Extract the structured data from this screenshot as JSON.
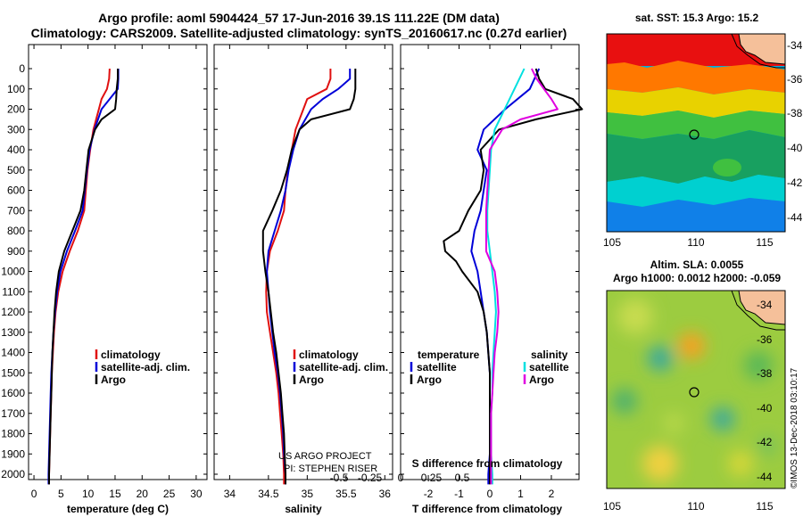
{
  "header": {
    "title_line1": "Argo profile: aoml 5904424_57 17-Jun-2016 39.1S 111.22E (DM data)",
    "title_line2": "Climatology: CARS2009. Satellite-adjusted climatology: synTS_20160617.nc (0.27d earlier)"
  },
  "colors": {
    "climatology": "#e01010",
    "satellite": "#0000d8",
    "argo": "#000000",
    "sal_satellite": "#00e0e0",
    "sal_argo": "#e000e0"
  },
  "chart_data": [
    {
      "type": "line",
      "panel": "temperature",
      "xlabel": "temperature (deg C)",
      "xlim": [
        -1,
        32
      ],
      "xticks": [
        0,
        5,
        10,
        15,
        20,
        25,
        30
      ],
      "ylim": [
        2060,
        0
      ],
      "yticks": [
        0,
        100,
        200,
        300,
        400,
        500,
        600,
        700,
        800,
        900,
        1000,
        1100,
        1200,
        1300,
        1400,
        1500,
        1600,
        1700,
        1800,
        1900,
        2000
      ],
      "legend": [
        "climatology",
        "satellite-adj. clim.",
        "Argo"
      ],
      "series": [
        {
          "name": "climatology",
          "color": "#e01010",
          "depth": [
            0,
            50,
            100,
            150,
            200,
            300,
            400,
            500,
            600,
            700,
            800,
            900,
            1000,
            1100,
            1200,
            1300,
            1400,
            1500,
            1600,
            1700,
            1800,
            1900,
            2000,
            2050
          ],
          "values": [
            14.0,
            13.9,
            13.5,
            12.5,
            12.0,
            11.0,
            10.4,
            9.9,
            9.6,
            9.3,
            8.1,
            6.6,
            5.3,
            4.5,
            4.0,
            3.7,
            3.5,
            3.3,
            3.2,
            3.1,
            3.0,
            2.9,
            2.8,
            2.8
          ]
        },
        {
          "name": "satellite-adj. clim.",
          "color": "#0000d8",
          "depth": [
            0,
            50,
            100,
            150,
            200,
            300,
            400,
            500,
            600,
            700,
            800,
            900,
            1000,
            1100,
            1200,
            1300,
            1400,
            1500,
            1600,
            1700,
            1800,
            1900,
            2000,
            2050
          ],
          "values": [
            15.6,
            15.6,
            15.5,
            14.0,
            12.5,
            11.2,
            10.3,
            9.8,
            9.4,
            9.0,
            7.6,
            6.1,
            4.9,
            4.3,
            3.9,
            3.6,
            3.4,
            3.2,
            3.1,
            3.0,
            2.9,
            2.8,
            2.7,
            2.7
          ]
        },
        {
          "name": "Argo",
          "color": "#000000",
          "depth": [
            0,
            50,
            100,
            150,
            200,
            250,
            300,
            400,
            500,
            600,
            700,
            800,
            900,
            1000,
            1100,
            1200,
            1300,
            1400,
            1500,
            1600,
            1700,
            1800,
            1900,
            2000,
            2050
          ],
          "values": [
            15.5,
            15.5,
            15.3,
            15.2,
            15.0,
            12.5,
            11.3,
            10.1,
            9.7,
            9.3,
            8.6,
            7.1,
            5.6,
            4.6,
            4.1,
            3.8,
            3.6,
            3.4,
            3.3,
            3.2,
            3.1,
            3.0,
            2.9,
            2.8,
            2.8
          ]
        }
      ]
    },
    {
      "type": "line",
      "panel": "salinity",
      "xlabel": "salinity",
      "xlim": [
        33.8,
        36.1
      ],
      "xticks": [
        34,
        34.5,
        35,
        35.5,
        36
      ],
      "ylim": [
        2060,
        0
      ],
      "legend": [
        "climatology",
        "satellite-adj. clim.",
        "Argo"
      ],
      "annotation": [
        "US ARGO PROJECT",
        "PI: STEPHEN RISER"
      ],
      "series": [
        {
          "name": "climatology",
          "color": "#e01010",
          "depth": [
            0,
            50,
            100,
            150,
            200,
            300,
            400,
            500,
            600,
            700,
            800,
            900,
            1000,
            1100,
            1200,
            1300,
            1400,
            1500,
            1600,
            1700,
            1800,
            1900,
            2000,
            2050
          ],
          "values": [
            35.3,
            35.3,
            35.25,
            35.0,
            34.95,
            34.85,
            34.8,
            34.75,
            34.72,
            34.7,
            34.62,
            34.52,
            34.48,
            34.47,
            34.48,
            34.52,
            34.56,
            34.6,
            34.63,
            34.65,
            34.67,
            34.69,
            34.7,
            34.7
          ]
        },
        {
          "name": "satellite-adj. clim.",
          "color": "#0000d8",
          "depth": [
            0,
            50,
            100,
            150,
            200,
            300,
            400,
            500,
            600,
            700,
            800,
            900,
            1000,
            1100,
            1200,
            1300,
            1400,
            1500,
            1600,
            1700,
            1800,
            1900,
            2000,
            2050
          ],
          "values": [
            35.55,
            35.55,
            35.4,
            35.2,
            35.05,
            34.9,
            34.82,
            34.76,
            34.72,
            34.66,
            34.58,
            34.5,
            34.48,
            34.5,
            34.52,
            34.55,
            34.58,
            34.62,
            34.65,
            34.67,
            34.69,
            34.7,
            34.72,
            34.72
          ]
        },
        {
          "name": "Argo",
          "color": "#000000",
          "depth": [
            0,
            50,
            100,
            150,
            200,
            250,
            300,
            400,
            500,
            600,
            700,
            800,
            900,
            1000,
            1100,
            1200,
            1300,
            1400,
            1500,
            1600,
            1700,
            1800,
            1900,
            2000,
            2050
          ],
          "values": [
            35.62,
            35.62,
            35.62,
            35.6,
            35.55,
            35.05,
            34.9,
            34.8,
            34.74,
            34.66,
            34.55,
            34.43,
            34.43,
            34.46,
            34.5,
            34.53,
            34.56,
            34.6,
            34.63,
            34.66,
            34.68,
            34.7,
            34.71,
            34.72,
            34.72
          ]
        }
      ]
    },
    {
      "type": "line",
      "panel": "difference",
      "xlabel": "T difference from climatology",
      "xlabel_secondary": "S difference from climatology",
      "xlim": [
        -2.9,
        2.9
      ],
      "xticks": [
        -2,
        -1,
        0,
        1,
        2
      ],
      "xticks_secondary": [
        "-0.5",
        "-0.25",
        "0",
        "0.25",
        "0.5"
      ],
      "ylim": [
        2060,
        0
      ],
      "legend": {
        "temperature_heading": "temperature",
        "salinity_heading": "salinity",
        "entries": [
          "satellite",
          "Argo"
        ]
      },
      "series": [
        {
          "name": "temperature satellite",
          "color": "#0000d8",
          "depth": [
            0,
            100,
            200,
            300,
            400,
            500,
            600,
            700,
            800,
            900,
            1000,
            1100,
            1200,
            1300,
            1400,
            1500,
            1600,
            1700,
            1800,
            1900,
            2000,
            2050
          ],
          "values": [
            1.6,
            1.3,
            0.5,
            -0.2,
            -0.4,
            -0.1,
            -0.2,
            -0.3,
            -0.5,
            -0.6,
            -0.4,
            -0.3,
            -0.2,
            -0.1,
            -0.05,
            0.0,
            0.0,
            0.0,
            0.0,
            0.0,
            -0.05,
            -0.05
          ]
        },
        {
          "name": "temperature Argo",
          "color": "#000000",
          "depth": [
            0,
            50,
            100,
            150,
            200,
            250,
            300,
            400,
            500,
            600,
            700,
            800,
            850,
            900,
            950,
            1000,
            1100,
            1200,
            1300,
            1400,
            1500,
            1600,
            1700,
            1800,
            1900,
            2000,
            2050
          ],
          "values": [
            1.5,
            1.6,
            1.8,
            2.7,
            3.0,
            1.5,
            0.3,
            -0.3,
            -0.2,
            -0.3,
            -0.7,
            -1.0,
            -1.5,
            -1.45,
            -1.1,
            -0.9,
            -0.4,
            -0.2,
            -0.1,
            -0.05,
            0.0,
            0.0,
            0.0,
            0.0,
            0.0,
            0.0,
            0.0
          ]
        },
        {
          "name": "salinity satellite",
          "color": "#00e0e0",
          "depth": [
            0,
            100,
            200,
            300,
            400,
            500,
            600,
            700,
            800,
            900,
            1000,
            1100,
            1200,
            1300,
            1400,
            1500,
            1600,
            1700,
            1800,
            1900,
            2000,
            2050
          ],
          "values": [
            0.28,
            0.2,
            0.12,
            0.04,
            0.01,
            0.0,
            -0.01,
            -0.02,
            -0.02,
            0.0,
            0.02,
            0.04,
            0.05,
            0.04,
            0.03,
            0.02,
            0.02,
            0.01,
            0.01,
            0.01,
            0.02,
            0.02
          ]
        },
        {
          "name": "salinity Argo",
          "color": "#e000e0",
          "depth": [
            0,
            50,
            100,
            150,
            200,
            250,
            300,
            400,
            500,
            600,
            700,
            800,
            900,
            1000,
            1100,
            1200,
            1300,
            1400,
            1500,
            1600,
            1700,
            1800,
            1900,
            2000,
            2050
          ],
          "values": [
            0.34,
            0.38,
            0.44,
            0.5,
            0.55,
            0.25,
            0.1,
            0.0,
            -0.01,
            -0.02,
            -0.03,
            -0.03,
            -0.03,
            0.04,
            0.06,
            0.07,
            0.06,
            0.04,
            0.03,
            0.02,
            0.01,
            0.01,
            0.01,
            0.01,
            0.01
          ]
        }
      ]
    },
    {
      "type": "heatmap",
      "panel": "sst-map",
      "title": "sat. SST: 15.3 Argo: 15.2",
      "xticks": [
        "105",
        "110",
        "115"
      ],
      "yticks": [
        "-34",
        "-36",
        "-38",
        "-40",
        "-42",
        "-44"
      ],
      "float_marker": {
        "lon": 111.22,
        "lat": -39.1
      }
    },
    {
      "type": "heatmap",
      "panel": "sla-map",
      "title_line1": "Altim. SLA: 0.0055",
      "title_line2": "Argo h1000: 0.0012 h2000: -0.059",
      "xticks": [
        "105",
        "110",
        "115"
      ],
      "yticks": [
        "-34",
        "-36",
        "-38",
        "-40",
        "-42",
        "-44"
      ],
      "float_marker": {
        "lon": 111.22,
        "lat": -39.1
      }
    }
  ],
  "credit": "©IMOS 13-Dec-2018 03:10:17"
}
